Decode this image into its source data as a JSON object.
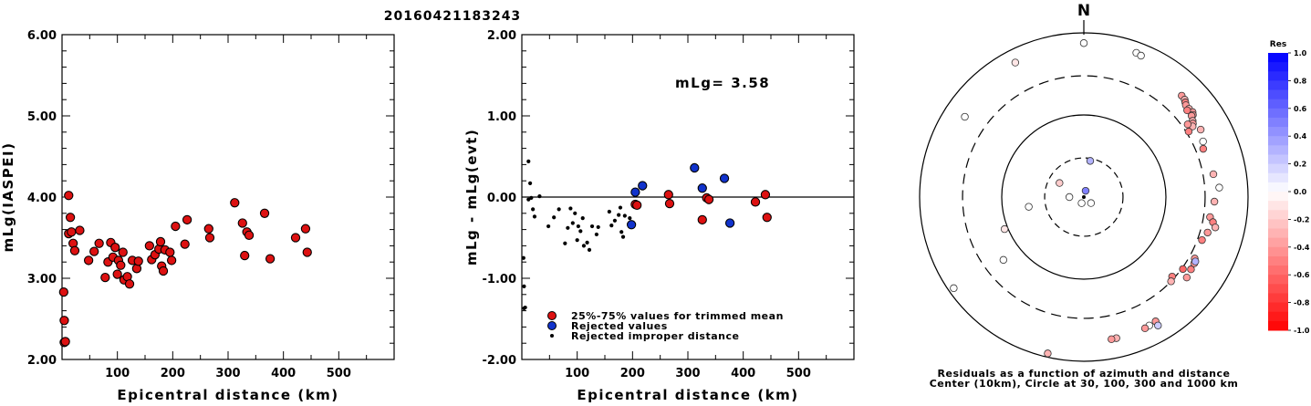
{
  "title": "20160421183243",
  "colors": {
    "trimmed": "#dd1111",
    "rejected": "#1133cc",
    "improper": "#000000"
  },
  "chart_data": [
    {
      "type": "scatter",
      "panel": "left",
      "ylabel": "mLg(IASPEI)",
      "xlabel": "Epicentral distance (km)",
      "xlim": [
        0,
        600
      ],
      "ylim": [
        2.0,
        6.0
      ],
      "xticks": [
        "100",
        "200",
        "300",
        "400",
        "500"
      ],
      "xtick_values": [
        100,
        200,
        300,
        400,
        500
      ],
      "yticks": [
        "2.00",
        "3.00",
        "4.00",
        "5.00",
        "6.00"
      ],
      "ytick_values": [
        2.0,
        3.0,
        4.0,
        5.0,
        6.0
      ],
      "points": [
        [
          3,
          2.83
        ],
        [
          4,
          2.48
        ],
        [
          4,
          2.21
        ],
        [
          6,
          2.22
        ],
        [
          12,
          4.02
        ],
        [
          12,
          3.55
        ],
        [
          15,
          3.75
        ],
        [
          17,
          3.57
        ],
        [
          20,
          3.43
        ],
        [
          23,
          3.34
        ],
        [
          32,
          3.59
        ],
        [
          48,
          3.22
        ],
        [
          58,
          3.33
        ],
        [
          67,
          3.43
        ],
        [
          78,
          3.01
        ],
        [
          83,
          3.2
        ],
        [
          88,
          3.44
        ],
        [
          92,
          3.26
        ],
        [
          96,
          3.38
        ],
        [
          100,
          3.05
        ],
        [
          102,
          3.22
        ],
        [
          106,
          3.16
        ],
        [
          110,
          3.32
        ],
        [
          112,
          2.98
        ],
        [
          118,
          3.02
        ],
        [
          122,
          2.93
        ],
        [
          127,
          3.22
        ],
        [
          135,
          3.12
        ],
        [
          138,
          3.21
        ],
        [
          158,
          3.4
        ],
        [
          162,
          3.23
        ],
        [
          168,
          3.29
        ],
        [
          175,
          3.36
        ],
        [
          178,
          3.45
        ],
        [
          180,
          3.15
        ],
        [
          183,
          3.09
        ],
        [
          186,
          3.35
        ],
        [
          195,
          3.32
        ],
        [
          198,
          3.22
        ],
        [
          205,
          3.64
        ],
        [
          222,
          3.42
        ],
        [
          226,
          3.72
        ],
        [
          265,
          3.61
        ],
        [
          267,
          3.5
        ],
        [
          312,
          3.93
        ],
        [
          326,
          3.68
        ],
        [
          330,
          3.28
        ],
        [
          334,
          3.57
        ],
        [
          338,
          3.53
        ],
        [
          366,
          3.8
        ],
        [
          376,
          3.24
        ],
        [
          422,
          3.5
        ],
        [
          440,
          3.61
        ],
        [
          443,
          3.32
        ]
      ]
    },
    {
      "type": "scatter",
      "panel": "middle",
      "ylabel": "mLg - mLg(evt)",
      "xlabel": "Epicentral distance (km)",
      "annotation": "mLg= 3.58",
      "xlim": [
        0,
        600
      ],
      "ylim": [
        -2.0,
        2.0
      ],
      "xticks": [
        "100",
        "200",
        "300",
        "400",
        "500"
      ],
      "xtick_values": [
        100,
        200,
        300,
        400,
        500
      ],
      "yticks": [
        "-2.00",
        "-1.00",
        "0.00",
        "1.00",
        "2.00"
      ],
      "ytick_values": [
        -2.0,
        -1.0,
        0.0,
        1.0,
        2.0
      ],
      "reference_line": 0,
      "legend": [
        {
          "label": "25%-75% values for trimmed mean",
          "kind": "trimmed"
        },
        {
          "label": "Rejected values",
          "kind": "rejected"
        },
        {
          "label": "Rejected improper distance",
          "kind": "improper"
        }
      ],
      "series": [
        {
          "kind": "trimmed",
          "points": [
            [
              205,
              -0.09
            ],
            [
              208,
              -0.1
            ],
            [
              265,
              0.03
            ],
            [
              267,
              -0.08
            ],
            [
              326,
              -0.28
            ],
            [
              334,
              -0.01
            ],
            [
              338,
              -0.03
            ],
            [
              422,
              -0.06
            ],
            [
              440,
              0.03
            ],
            [
              443,
              -0.25
            ]
          ]
        },
        {
          "kind": "rejected",
          "points": [
            [
              198,
              -0.34
            ],
            [
              205,
              0.06
            ],
            [
              218,
              0.14
            ],
            [
              312,
              0.36
            ],
            [
              326,
              0.11
            ],
            [
              366,
              0.23
            ],
            [
              376,
              -0.32
            ]
          ]
        },
        {
          "kind": "improper",
          "points": [
            [
              3,
              -0.75
            ],
            [
              4,
              -1.1
            ],
            [
              4,
              -1.37
            ],
            [
              6,
              -1.36
            ],
            [
              12,
              0.44
            ],
            [
              12,
              -0.03
            ],
            [
              15,
              0.17
            ],
            [
              17,
              -0.01
            ],
            [
              20,
              -0.15
            ],
            [
              23,
              -0.24
            ],
            [
              32,
              0.01
            ],
            [
              48,
              -0.36
            ],
            [
              58,
              -0.25
            ],
            [
              67,
              -0.15
            ],
            [
              78,
              -0.57
            ],
            [
              83,
              -0.38
            ],
            [
              88,
              -0.14
            ],
            [
              92,
              -0.32
            ],
            [
              96,
              -0.2
            ],
            [
              100,
              -0.53
            ],
            [
              102,
              -0.36
            ],
            [
              106,
              -0.42
            ],
            [
              110,
              -0.26
            ],
            [
              112,
              -0.6
            ],
            [
              118,
              -0.56
            ],
            [
              122,
              -0.65
            ],
            [
              127,
              -0.36
            ],
            [
              135,
              -0.46
            ],
            [
              138,
              -0.37
            ],
            [
              158,
              -0.18
            ],
            [
              162,
              -0.35
            ],
            [
              168,
              -0.29
            ],
            [
              175,
              -0.22
            ],
            [
              178,
              -0.13
            ],
            [
              180,
              -0.43
            ],
            [
              183,
              -0.49
            ],
            [
              186,
              -0.23
            ],
            [
              195,
              -0.26
            ]
          ]
        }
      ]
    },
    {
      "type": "scatter",
      "panel": "polar",
      "north_label": "N",
      "caption_line1": "Residuals as a function of azimuth and distance",
      "caption_line2": "Center (10km), Circle at 30, 100, 300 and 1000 km",
      "rings_km": [
        30,
        100,
        300,
        1000
      ],
      "points_az_dist_res": [
        [
          0,
          10,
          0.0
        ],
        [
          16,
          12,
          0.5
        ],
        [
          130,
          13,
          0.0
        ],
        [
          200,
          12,
          0.0
        ],
        [
          270,
          15,
          0.0
        ],
        [
          10,
          28,
          0.3
        ],
        [
          300,
          22,
          -0.2
        ],
        [
          260,
          48,
          0.0
        ],
        [
          248,
          110,
          -0.1
        ],
        [
          232,
          175,
          0.0
        ],
        [
          304,
          560,
          0.0
        ],
        [
          333,
          690,
          -0.1
        ],
        [
          0,
          750,
          0.0
        ],
        [
          20,
          740,
          0.0
        ],
        [
          22,
          720,
          0.0
        ],
        [
          44,
          520,
          -0.4
        ],
        [
          46,
          510,
          -0.3
        ],
        [
          47,
          490,
          -0.5
        ],
        [
          48,
          470,
          -0.4
        ],
        [
          50,
          470,
          -0.3
        ],
        [
          52,
          480,
          -0.4
        ],
        [
          50,
          440,
          -0.5
        ],
        [
          53,
          460,
          -0.4
        ],
        [
          53,
          440,
          -0.4
        ],
        [
          55,
          415,
          -0.3
        ],
        [
          56,
          400,
          -0.4
        ],
        [
          57,
          380,
          -0.3
        ],
        [
          55,
          350,
          -0.4
        ],
        [
          58,
          320,
          -0.5
        ],
        [
          60,
          440,
          -0.3
        ],
        [
          65,
          400,
          0.0
        ],
        [
          68,
          370,
          -0.5
        ],
        [
          80,
          400,
          -0.3
        ],
        [
          86,
          450,
          0.0
        ],
        [
          92,
          390,
          -0.3
        ],
        [
          99,
          360,
          -0.4
        ],
        [
          101,
          400,
          -0.5
        ],
        [
          103,
          440,
          -0.3
        ],
        [
          106,
          370,
          -0.4
        ],
        [
          110,
          340,
          -0.5
        ],
        [
          119,
          350,
          -0.4
        ],
        [
          121,
          370,
          -0.4
        ],
        [
          124,
          375,
          -0.5
        ],
        [
          126,
          310,
          -0.6
        ],
        [
          128,
          390,
          -0.4
        ],
        [
          120,
          370,
          0.3
        ],
        [
          132,
          280,
          -0.5
        ],
        [
          134,
          300,
          -0.3
        ],
        [
          150,
          560,
          -0.4
        ],
        [
          150,
          640,
          0.2
        ],
        [
          153,
          570,
          0.0
        ],
        [
          155,
          580,
          -0.4
        ],
        [
          167,
          580,
          -0.3
        ],
        [
          169,
          580,
          -0.4
        ],
        [
          193,
          900,
          -0.3
        ],
        [
          235,
          860,
          0.0
        ]
      ],
      "colorbar_title": "Res",
      "colorbar_labels": [
        "1.0",
        "0.8",
        "0.6",
        "0.4",
        "0.2",
        "0.0",
        "-0.2",
        "-0.4",
        "-0.6",
        "-0.8",
        "-1.0"
      ]
    }
  ]
}
